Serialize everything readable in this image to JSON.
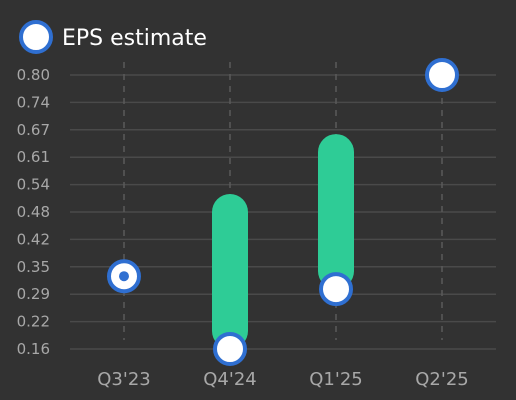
{
  "colors": {
    "background": "#323232",
    "grid": "#4a4a4a",
    "guide": "#5a5a5a",
    "bar": "#2ecc96",
    "marker_stroke": "#2f6fd1",
    "marker_fill": "#ffffff",
    "tick_text": "#a8a8a8",
    "legend_text": "#ffffff"
  },
  "legend": {
    "label": "EPS estimate",
    "icon": "circle-marker-icon",
    "placement": "top-left"
  },
  "chart_data": {
    "type": "bar",
    "subtype": "range-bar with estimate markers",
    "categories": [
      "Q3'23",
      "Q4'24",
      "Q1'25",
      "Q2'25"
    ],
    "y_ticks": [
      "0.80",
      "0.74",
      "0.67",
      "0.61",
      "0.54",
      "0.48",
      "0.42",
      "0.35",
      "0.29",
      "0.22",
      "0.16"
    ],
    "ylim": [
      0.16,
      0.8
    ],
    "grid": true,
    "series": [
      {
        "name": "EPS estimate",
        "kind": "marker",
        "values": [
          0.33,
          0.16,
          0.3,
          0.8
        ]
      },
      {
        "kind": "range-bar",
        "low": [
          null,
          0.16,
          0.3,
          null
        ],
        "high": [
          null,
          0.48,
          0.62,
          null
        ]
      }
    ],
    "marker_style": [
      "dot",
      "open",
      "open",
      "open"
    ]
  }
}
